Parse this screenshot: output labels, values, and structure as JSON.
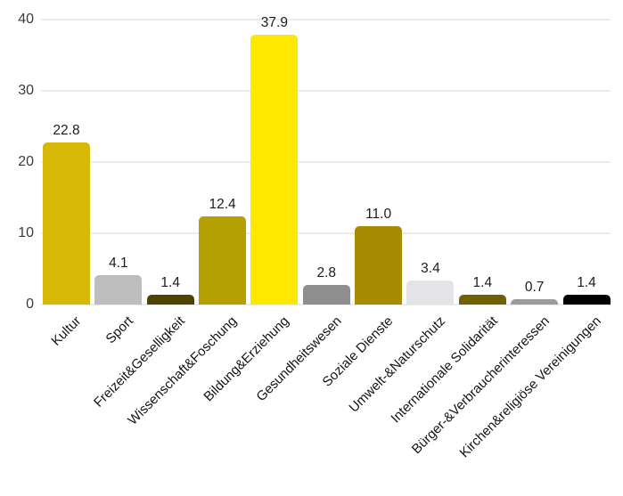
{
  "chart_data": {
    "type": "bar",
    "title": "",
    "xlabel": "",
    "ylabel": "",
    "categories": [
      "Kultur",
      "Sport",
      "Freizeit&Geselligkeit",
      "Wissenschaft&Foschung",
      "Bildung&Erziehung",
      "Gesundheitswesen",
      "Soziale Dienste",
      "Umwelt-&Naturschutz",
      "Internationale Solidarität",
      "Bürger-&Verbraucherinteressen",
      "Kirchen&religiöse Vereinigungen"
    ],
    "values": [
      22.8,
      4.1,
      1.4,
      12.4,
      37.9,
      2.8,
      11.0,
      3.4,
      1.4,
      0.7,
      1.4
    ],
    "value_labels": [
      "22.8",
      "4.1",
      "1.4",
      "12.4",
      "37.9",
      "2.8",
      "11.0",
      "3.4",
      "1.4",
      "0.7",
      "1.4"
    ],
    "bar_colors": [
      "#d7b807",
      "#bdbdbd",
      "#4e4400",
      "#b5a001",
      "#ffe800",
      "#8e8e8e",
      "#a68c00",
      "#e4e4e6",
      "#6f6000",
      "#9b9b9b",
      "#000000"
    ],
    "ylim": [
      0,
      40
    ],
    "yticks": [
      0,
      10,
      20,
      30,
      40
    ],
    "grid": true,
    "legend": false,
    "colors": {
      "grid": "#ececec",
      "tick_text": "#3a3a3a",
      "value_text": "#1c1c1c",
      "xlabel_text": "#141414",
      "background": "#ffffff"
    }
  }
}
